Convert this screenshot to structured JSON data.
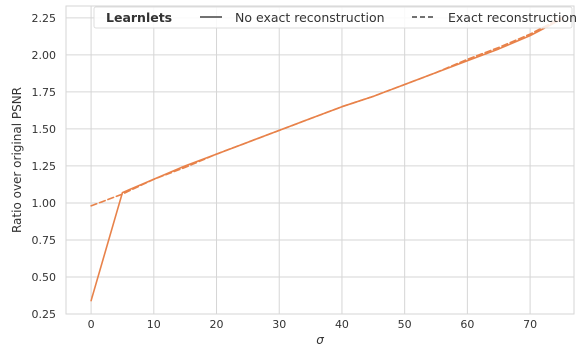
{
  "chart_data": {
    "type": "line",
    "xlabel": "σ",
    "ylabel": "Ratio over original PSNR",
    "xlim": [
      -4,
      77
    ],
    "ylim": [
      0.25,
      2.33
    ],
    "x_ticks": [
      0,
      10,
      20,
      30,
      40,
      50,
      60,
      70
    ],
    "x_tick_labels": [
      "0",
      "10",
      "20",
      "30",
      "40",
      "50",
      "60",
      "70"
    ],
    "y_ticks": [
      0.25,
      0.5,
      0.75,
      1.0,
      1.25,
      1.5,
      1.75,
      2.0,
      2.25
    ],
    "y_tick_labels": [
      "0.25",
      "0.50",
      "0.75",
      "1.00",
      "1.25",
      "1.50",
      "1.75",
      "2.00",
      "2.25"
    ],
    "grid": true,
    "legend": {
      "placement": "top",
      "title": "Learnlets",
      "entries": [
        {
          "label": "No exact reconstruction",
          "style": "solid"
        },
        {
          "label": "Exact reconstruction",
          "style": "dashed"
        }
      ]
    },
    "series": [
      {
        "style": "solid",
        "color": "#e8824a",
        "x": [
          0,
          5,
          10,
          15,
          20,
          25,
          30,
          35,
          40,
          45,
          50,
          55,
          60,
          65,
          70,
          75
        ],
        "y": [
          0.34,
          1.07,
          1.16,
          1.25,
          1.33,
          1.41,
          1.49,
          1.57,
          1.65,
          1.72,
          1.8,
          1.88,
          1.96,
          2.04,
          2.13,
          2.24
        ]
      },
      {
        "style": "dashed",
        "color": "#e8824a",
        "x": [
          0,
          5,
          10,
          15,
          20,
          25,
          30,
          35,
          40,
          45,
          50,
          55,
          60,
          65,
          70,
          75
        ],
        "y": [
          0.98,
          1.06,
          1.16,
          1.24,
          1.33,
          1.41,
          1.49,
          1.57,
          1.65,
          1.72,
          1.8,
          1.88,
          1.97,
          2.05,
          2.14,
          2.25
        ]
      }
    ],
    "colors": {
      "line": "#e8824a",
      "grid": "#d6d6d6",
      "legend_line": "#444444",
      "text": "#333333"
    }
  }
}
